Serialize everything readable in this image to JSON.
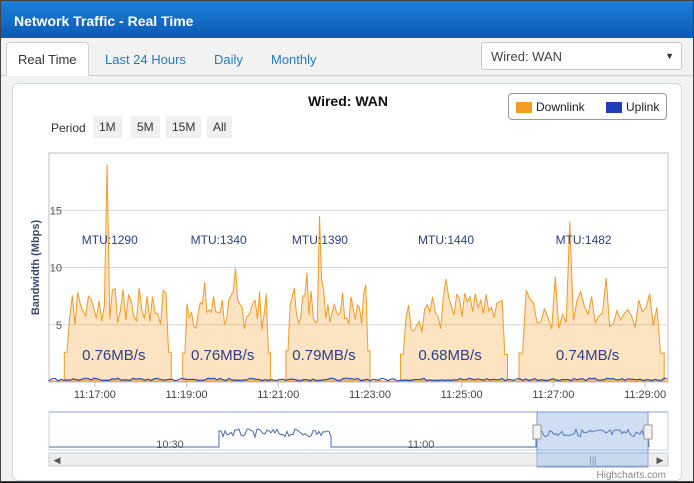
{
  "window": {
    "title": "Network Traffic - Real Time"
  },
  "tabs": [
    "Real Time",
    "Last 24 Hours",
    "Daily",
    "Monthly"
  ],
  "interface_select": {
    "value": "Wired: WAN"
  },
  "period": {
    "label": "Period",
    "buttons": [
      "1M",
      "5M",
      "15M",
      "All"
    ]
  },
  "colors": {
    "downlink": "#f59a23",
    "uplink": "#1f3fb8",
    "accent": "#1a75cf"
  },
  "credit": "Highcharts.com",
  "navigator": {
    "labels": [
      "10:30",
      "11:00"
    ]
  },
  "chart_data": {
    "type": "area",
    "title": "Wired: WAN",
    "ylabel": "Bandwidth (Mbps)",
    "ylim": [
      0,
      20
    ],
    "yticks": [
      "5",
      "10",
      "15"
    ],
    "xticks": [
      "11:17:00",
      "11:19:00",
      "11:21:00",
      "11:23:00",
      "11:25:00",
      "11:27:00",
      "11:29:00"
    ],
    "xlim": [
      "11:16:00",
      "11:29:30"
    ],
    "grid": true,
    "legend_position": "top-right",
    "series": [
      {
        "name": "Downlink",
        "color": "#f59a23"
      },
      {
        "name": "Uplink",
        "color": "#1f3fb8"
      }
    ],
    "annotations": [
      {
        "mtu": "MTU:1290",
        "rate": "0.76MB/s"
      },
      {
        "mtu": "MTU:1340",
        "rate": "0.76MB/s"
      },
      {
        "mtu": "MTU:1390",
        "rate": "0.79MB/s"
      },
      {
        "mtu": "MTU:1440",
        "rate": "0.68MB/s"
      },
      {
        "mtu": "MTU:1482",
        "rate": "0.74MB/s"
      }
    ],
    "segments": [
      {
        "start": "11:16:20",
        "end": "11:18:40",
        "level_mbps": 6.5,
        "peak_mbps": 19
      },
      {
        "start": "11:18:55",
        "end": "11:20:50",
        "level_mbps": 6.3,
        "peak_mbps": 14.5
      },
      {
        "start": "11:21:10",
        "end": "11:23:00",
        "level_mbps": 6.8,
        "peak_mbps": 14.5
      },
      {
        "start": "11:23:40",
        "end": "11:26:00",
        "level_mbps": 6.0,
        "peak_mbps": 9
      },
      {
        "start": "11:26:15",
        "end": "11:29:25",
        "level_mbps": 6.3,
        "peak_mbps": 14
      }
    ]
  }
}
